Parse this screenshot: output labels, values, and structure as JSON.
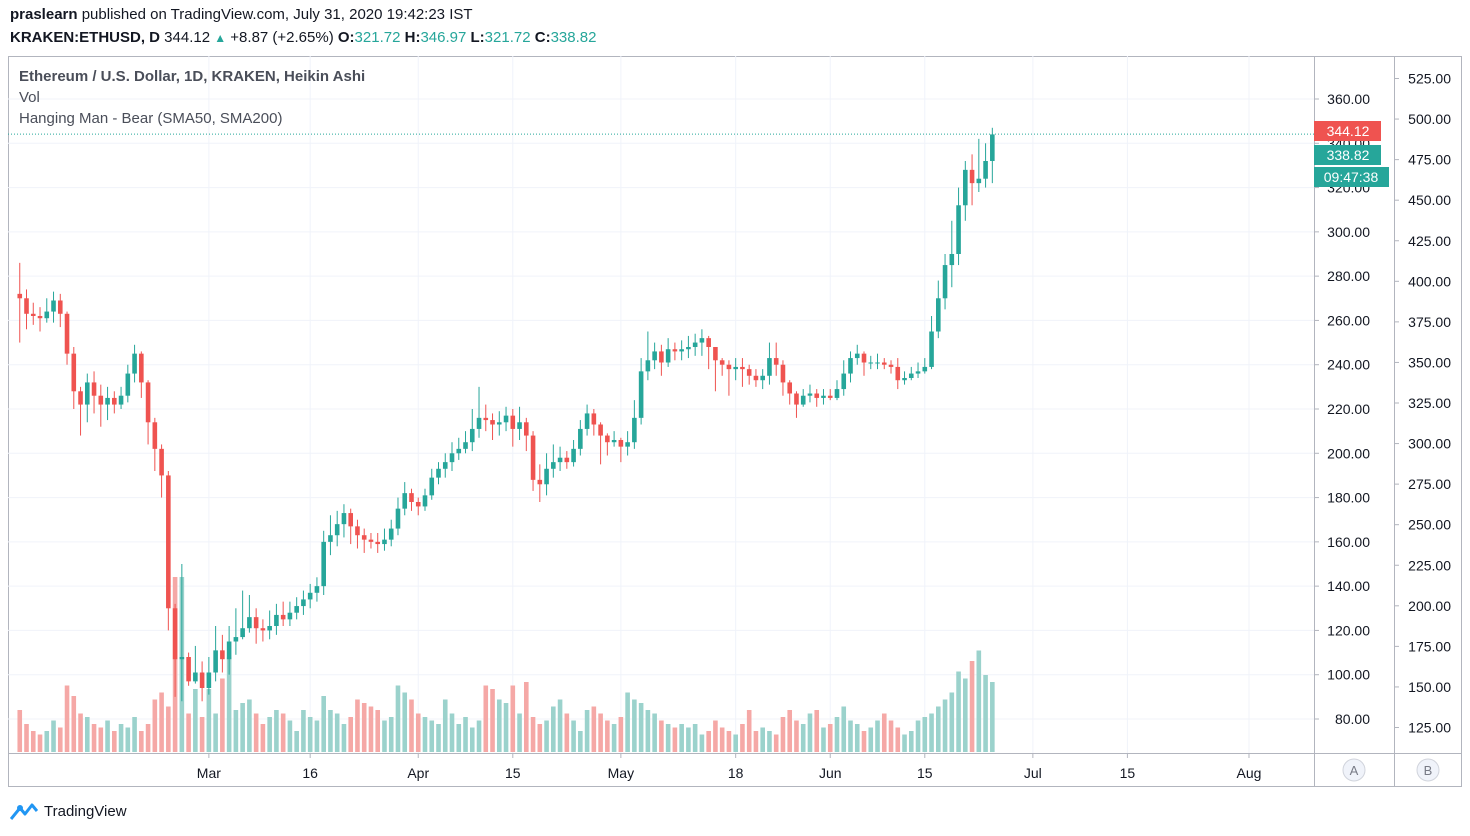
{
  "header": {
    "author": "praslearn",
    "published_text": " published on TradingView.com, July 31, 2020 19:42:23 IST",
    "symbol": "KRAKEN:ETHUSD, D",
    "last": "344.12",
    "arrow": "▲",
    "change": "+8.87 (+2.65%)",
    "o_label": "O:",
    "o_value": "321.72",
    "h_label": "H:",
    "h_value": "346.97",
    "l_label": "L:",
    "l_value": "321.72",
    "c_label": "C:",
    "c_value": "338.82"
  },
  "legend": {
    "line1": "Ethereum / U.S. Dollar, 1D, KRAKEN, Heikin Ashi",
    "line2": "Vol",
    "line3": "Hanging Man - Bear (SMA50, SMA200)"
  },
  "badges": {
    "price_red": "344.12",
    "price_green": "338.82",
    "countdown": "09:47:38"
  },
  "scale_buttons": {
    "a": "A",
    "b": "B"
  },
  "brand": {
    "name": "TradingView"
  },
  "colors": {
    "up": "#26a69a",
    "down": "#ef5350",
    "up_vol": "#9bd2cc",
    "down_vol": "#f5a8a6",
    "grid": "#f0f3fa",
    "text": "#131722"
  },
  "chart_data": {
    "type": "candlestick",
    "style": "Heikin Ashi",
    "grid": true,
    "x_tick_labels": [
      "Mar",
      "16",
      "Apr",
      "15",
      "May",
      "18",
      "Jun",
      "15",
      "Jul",
      "15",
      "Aug"
    ],
    "x_ticks_day_index": [
      29,
      44,
      60,
      74,
      90,
      107,
      121,
      135,
      151,
      165,
      183
    ],
    "left_axis": {
      "ylim": [
        63,
        370
      ],
      "ticks": [
        "80.00",
        "100.00",
        "120.00",
        "140.00",
        "160.00",
        "180.00",
        "200.00",
        "220.00",
        "240.00",
        "260.00",
        "280.00",
        "300.00",
        "320.00",
        "340.00",
        "360.00"
      ]
    },
    "right_axis": {
      "ylim": [
        110,
        530
      ],
      "ticks": [
        "125.00",
        "150.00",
        "175.00",
        "200.00",
        "225.00",
        "250.00",
        "275.00",
        "300.00",
        "325.00",
        "350.00",
        "375.00",
        "400.00",
        "425.00",
        "450.00",
        "475.00",
        "500.00",
        "525.00"
      ]
    },
    "last_price_line": 344.12,
    "candles_start_day": 1,
    "candles": [
      [
        272,
        270,
        286,
        250
      ],
      [
        270,
        263,
        274,
        256
      ],
      [
        263,
        262,
        268,
        258
      ],
      [
        262,
        261,
        266,
        255
      ],
      [
        261,
        264,
        270,
        259
      ],
      [
        264,
        269,
        273,
        259
      ],
      [
        269,
        263,
        272,
        257
      ],
      [
        263,
        245,
        264,
        240
      ],
      [
        245,
        228,
        248,
        220
      ],
      [
        228,
        222,
        230,
        208
      ],
      [
        222,
        232,
        236,
        214
      ],
      [
        232,
        226,
        237,
        218
      ],
      [
        226,
        222,
        231,
        212
      ],
      [
        222,
        225,
        230,
        215
      ],
      [
        225,
        222,
        228,
        218
      ],
      [
        222,
        226,
        230,
        220
      ],
      [
        226,
        236,
        240,
        223
      ],
      [
        236,
        245,
        249,
        232
      ],
      [
        245,
        232,
        246,
        225
      ],
      [
        232,
        214,
        233,
        204
      ],
      [
        214,
        202,
        216,
        192
      ],
      [
        202,
        190,
        204,
        180
      ],
      [
        190,
        130,
        192,
        120
      ],
      [
        130,
        107,
        132,
        90
      ],
      [
        107,
        108,
        150,
        88
      ],
      [
        108,
        97,
        110,
        95
      ],
      [
        97,
        101,
        113,
        96
      ],
      [
        101,
        94,
        106,
        88
      ],
      [
        94,
        101,
        108,
        91
      ],
      [
        101,
        111,
        122,
        97
      ],
      [
        111,
        107,
        118,
        101
      ],
      [
        107,
        115,
        122,
        100
      ],
      [
        115,
        117,
        130,
        109
      ],
      [
        117,
        121,
        138,
        116
      ],
      [
        121,
        126,
        136,
        119
      ],
      [
        126,
        121,
        130,
        114
      ],
      [
        121,
        120,
        125,
        115
      ],
      [
        120,
        122,
        129,
        116
      ],
      [
        122,
        127,
        132,
        118
      ],
      [
        127,
        125,
        133,
        122
      ],
      [
        125,
        128,
        133,
        122
      ],
      [
        128,
        131,
        135,
        125
      ],
      [
        131,
        134,
        138,
        127
      ],
      [
        134,
        137,
        141,
        130
      ],
      [
        137,
        140,
        144,
        133
      ],
      [
        140,
        160,
        165,
        136
      ],
      [
        160,
        163,
        172,
        154
      ],
      [
        163,
        168,
        174,
        158
      ],
      [
        168,
        173,
        177,
        162
      ],
      [
        173,
        167,
        175,
        159
      ],
      [
        167,
        163,
        170,
        157
      ],
      [
        163,
        161,
        166,
        155
      ],
      [
        161,
        160,
        164,
        157
      ],
      [
        160,
        159,
        164,
        155
      ],
      [
        159,
        161,
        166,
        156
      ],
      [
        161,
        166,
        170,
        158
      ],
      [
        166,
        175,
        180,
        163
      ],
      [
        175,
        182,
        187,
        172
      ],
      [
        182,
        178,
        184,
        174
      ],
      [
        178,
        176,
        180,
        172
      ],
      [
        176,
        181,
        184,
        174
      ],
      [
        181,
        189,
        193,
        179
      ],
      [
        189,
        193,
        196,
        186
      ],
      [
        193,
        196,
        200,
        189
      ],
      [
        196,
        200,
        205,
        192
      ],
      [
        200,
        202,
        207,
        197
      ],
      [
        202,
        205,
        210,
        200
      ],
      [
        205,
        211,
        220,
        201
      ],
      [
        211,
        216,
        230,
        207
      ],
      [
        216,
        215,
        222,
        210
      ],
      [
        215,
        213,
        218,
        206
      ],
      [
        213,
        214,
        219,
        208
      ],
      [
        214,
        217,
        221,
        210
      ],
      [
        217,
        211,
        220,
        203
      ],
      [
        211,
        214,
        221,
        206
      ],
      [
        214,
        208,
        216,
        201
      ],
      [
        208,
        188,
        210,
        183
      ],
      [
        188,
        186,
        195,
        178
      ],
      [
        186,
        193,
        200,
        181
      ],
      [
        193,
        196,
        204,
        189
      ],
      [
        196,
        198,
        203,
        192
      ],
      [
        198,
        196,
        201,
        193
      ],
      [
        196,
        202,
        206,
        194
      ],
      [
        202,
        211,
        215,
        199
      ],
      [
        211,
        218,
        222,
        208
      ],
      [
        218,
        213,
        220,
        208
      ],
      [
        213,
        208,
        214,
        195
      ],
      [
        208,
        205,
        209,
        199
      ],
      [
        205,
        206,
        210,
        203
      ],
      [
        206,
        203,
        207,
        196
      ],
      [
        203,
        205,
        210,
        199
      ],
      [
        205,
        216,
        224,
        202
      ],
      [
        216,
        237,
        243,
        213
      ],
      [
        237,
        242,
        255,
        233
      ],
      [
        242,
        246,
        250,
        238
      ],
      [
        246,
        241,
        249,
        235
      ],
      [
        241,
        247,
        252,
        239
      ],
      [
        247,
        246,
        250,
        242
      ],
      [
        246,
        247,
        251,
        242
      ],
      [
        247,
        248,
        253,
        243
      ],
      [
        248,
        250,
        254,
        244
      ],
      [
        250,
        252,
        256,
        244
      ],
      [
        252,
        248,
        253,
        238
      ],
      [
        248,
        242,
        248,
        228
      ],
      [
        242,
        240,
        243,
        235
      ],
      [
        240,
        238,
        242,
        226
      ],
      [
        238,
        239,
        243,
        233
      ],
      [
        239,
        238,
        243,
        230
      ],
      [
        238,
        235,
        240,
        231
      ],
      [
        235,
        233,
        238,
        230
      ],
      [
        233,
        235,
        238,
        229
      ],
      [
        235,
        243,
        250,
        231
      ],
      [
        243,
        240,
        250,
        235
      ],
      [
        240,
        232,
        242,
        226
      ],
      [
        232,
        227,
        233,
        222
      ],
      [
        227,
        222,
        228,
        216
      ],
      [
        222,
        226,
        229,
        221
      ],
      [
        226,
        227,
        231,
        223
      ],
      [
        227,
        225,
        229,
        221
      ],
      [
        225,
        226,
        229,
        222
      ],
      [
        226,
        225,
        229,
        224
      ],
      [
        225,
        229,
        233,
        224
      ],
      [
        229,
        236,
        242,
        226
      ],
      [
        236,
        243,
        246,
        232
      ],
      [
        243,
        245,
        249,
        240
      ],
      [
        245,
        241,
        246,
        235
      ],
      [
        241,
        241,
        244,
        238
      ],
      [
        241,
        241,
        245,
        238
      ],
      [
        241,
        240,
        243,
        238
      ],
      [
        240,
        239,
        242,
        236
      ],
      [
        239,
        233,
        243,
        229
      ],
      [
        233,
        234,
        237,
        231
      ],
      [
        234,
        236,
        239,
        233
      ],
      [
        236,
        237,
        241,
        234
      ],
      [
        237,
        239,
        243,
        236
      ],
      [
        239,
        255,
        262,
        238
      ],
      [
        255,
        270,
        278,
        252
      ],
      [
        270,
        285,
        290,
        265
      ],
      [
        285,
        290,
        305,
        275
      ],
      [
        290,
        312,
        320,
        285
      ],
      [
        312,
        328,
        332,
        305
      ],
      [
        328,
        322,
        335,
        312
      ],
      [
        322,
        324,
        342,
        318
      ],
      [
        324,
        332,
        340,
        320
      ],
      [
        332,
        344,
        347,
        322
      ]
    ],
    "volume_relative": [
      0.24,
      0.16,
      0.12,
      0.1,
      0.12,
      0.18,
      0.14,
      0.38,
      0.32,
      0.22,
      0.2,
      0.16,
      0.14,
      0.18,
      0.12,
      0.16,
      0.14,
      0.2,
      0.12,
      0.16,
      0.3,
      0.34,
      0.26,
      1.0,
      1.0,
      0.22,
      0.36,
      0.2,
      0.36,
      0.22,
      0.42,
      0.54,
      0.24,
      0.28,
      0.3,
      0.22,
      0.16,
      0.2,
      0.24,
      0.22,
      0.18,
      0.12,
      0.24,
      0.2,
      0.18,
      0.32,
      0.24,
      0.22,
      0.16,
      0.2,
      0.3,
      0.28,
      0.26,
      0.24,
      0.18,
      0.2,
      0.38,
      0.34,
      0.3,
      0.22,
      0.2,
      0.18,
      0.16,
      0.3,
      0.22,
      0.16,
      0.2,
      0.14,
      0.18,
      0.38,
      0.36,
      0.3,
      0.28,
      0.38,
      0.22,
      0.4,
      0.2,
      0.16,
      0.18,
      0.26,
      0.3,
      0.22,
      0.18,
      0.12,
      0.24,
      0.26,
      0.22,
      0.18,
      0.16,
      0.2,
      0.34,
      0.3,
      0.28,
      0.24,
      0.22,
      0.18,
      0.16,
      0.14,
      0.16,
      0.14,
      0.16,
      0.1,
      0.12,
      0.18,
      0.14,
      0.12,
      0.1,
      0.16,
      0.24,
      0.12,
      0.14,
      0.12,
      0.1,
      0.2,
      0.24,
      0.18,
      0.16,
      0.22,
      0.24,
      0.14,
      0.16,
      0.2,
      0.26,
      0.18,
      0.16,
      0.12,
      0.14,
      0.18,
      0.22,
      0.18,
      0.14,
      0.1,
      0.12,
      0.18,
      0.2,
      0.22,
      0.26,
      0.3,
      0.34,
      0.46,
      0.42,
      0.52,
      0.58,
      0.44,
      0.4,
      0.32
    ]
  }
}
